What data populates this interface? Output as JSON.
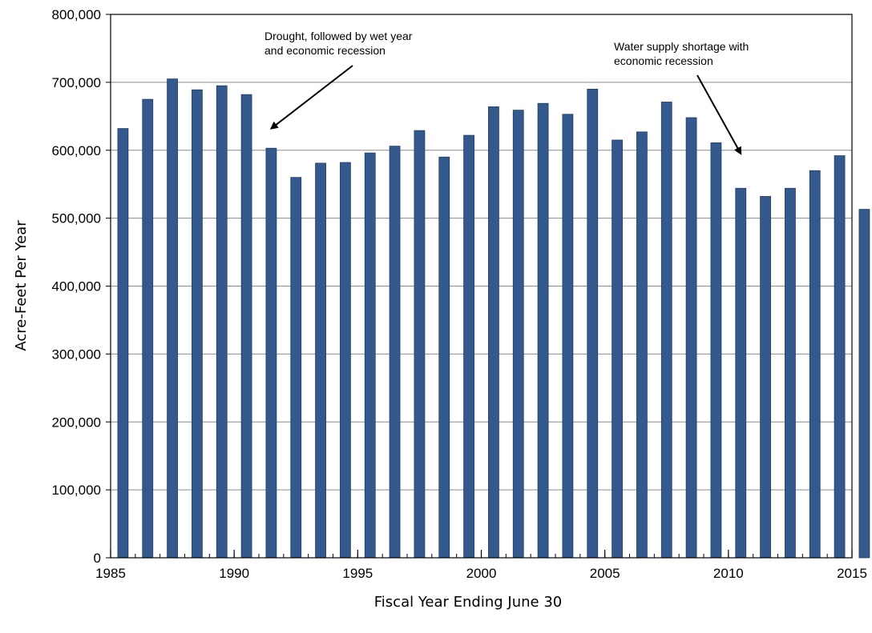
{
  "chart_data": {
    "type": "bar",
    "title": "",
    "xlabel": "Fiscal Year Ending June 30",
    "ylabel": "Acre-Feet Per Year",
    "ylim": [
      0,
      800000
    ],
    "yticks": [
      0,
      100000,
      200000,
      300000,
      400000,
      500000,
      600000,
      700000,
      800000
    ],
    "ytick_labels": [
      "0",
      "100,000",
      "200,000",
      "300,000",
      "400,000",
      "500,000",
      "600,000",
      "700,000",
      "800,000"
    ],
    "xlim": [
      1985,
      2015
    ],
    "xticks": [
      1985,
      1990,
      1995,
      2000,
      2005,
      2010,
      2015
    ],
    "xtick_labels": [
      "1985",
      "1990",
      "1995",
      "2000",
      "2005",
      "2010",
      "2015"
    ],
    "grid": "horizontal",
    "bar_color": "#34598c",
    "categories": [
      1985.5,
      1986.5,
      1987.5,
      1988.5,
      1989.5,
      1990.5,
      1991.5,
      1992.5,
      1993.5,
      1994.5,
      1995.5,
      1996.5,
      1997.5,
      1998.5,
      1999.5,
      2000.5,
      2001.5,
      2002.5,
      2003.5,
      2004.5,
      2005.5,
      2006.5,
      2007.5,
      2008.5,
      2009.5,
      2010.5,
      2011.5,
      2012.5,
      2013.5,
      2014.5,
      2015.5
    ],
    "values": [
      632000,
      675000,
      705000,
      689000,
      695000,
      682000,
      603000,
      560000,
      581000,
      582000,
      596000,
      606000,
      629000,
      590000,
      622000,
      664000,
      659000,
      669000,
      653000,
      690000,
      615000,
      627000,
      671000,
      648000,
      611000,
      544000,
      532000,
      544000,
      570000,
      592000,
      513000
    ],
    "annotations": [
      {
        "lines": [
          "Drought, followed by wet year",
          "and economic recession"
        ],
        "arrow_to_x": 1991.5,
        "arrow_to_y": 632000
      },
      {
        "lines": [
          "Water supply shortage with",
          "economic recession"
        ],
        "arrow_to_x": 2010.5,
        "arrow_to_y": 595000
      }
    ]
  }
}
